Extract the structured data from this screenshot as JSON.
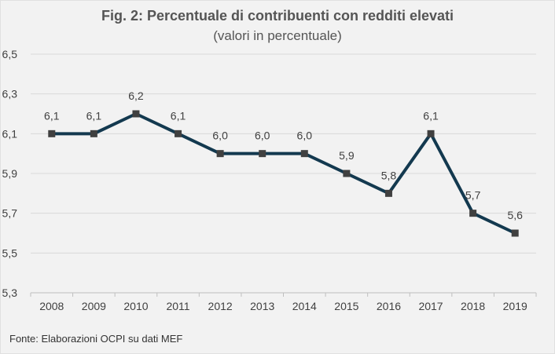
{
  "title": "Fig. 2: Percentuale di contribuenti con redditi elevati",
  "subtitle": "(valori in percentuale)",
  "source": "Fonte: Elaborazioni OCPI su dati MEF",
  "colors": {
    "line": "#13394f",
    "marker": "#404040",
    "grid": "#d9d9d9",
    "background": "#f2f2f2"
  },
  "chart_data": {
    "type": "line",
    "title": "Fig. 2: Percentuale di contribuenti con redditi elevati",
    "subtitle": "(valori in percentuale)",
    "xlabel": "",
    "ylabel": "",
    "categories": [
      "2008",
      "2009",
      "2010",
      "2011",
      "2012",
      "2013",
      "2014",
      "2015",
      "2016",
      "2017",
      "2018",
      "2019"
    ],
    "series": [
      {
        "values": [
          6.1,
          6.1,
          6.2,
          6.1,
          6.0,
          6.0,
          6.0,
          5.9,
          5.8,
          6.1,
          5.7,
          5.6
        ]
      }
    ],
    "data_labels": [
      "6,1",
      "6,1",
      "6,2",
      "6,1",
      "6,0",
      "6,0",
      "6,0",
      "5,9",
      "5,8",
      "6,1",
      "5,7",
      "5,6"
    ],
    "ylim": [
      5.3,
      6.5
    ],
    "yticks": [
      5.3,
      5.5,
      5.7,
      5.9,
      6.1,
      6.3,
      6.5
    ],
    "ytick_labels": [
      "5,3",
      "5,5",
      "5,7",
      "5,9",
      "6,1",
      "6,3",
      "6,5"
    ],
    "grid": true,
    "legend": "none"
  }
}
